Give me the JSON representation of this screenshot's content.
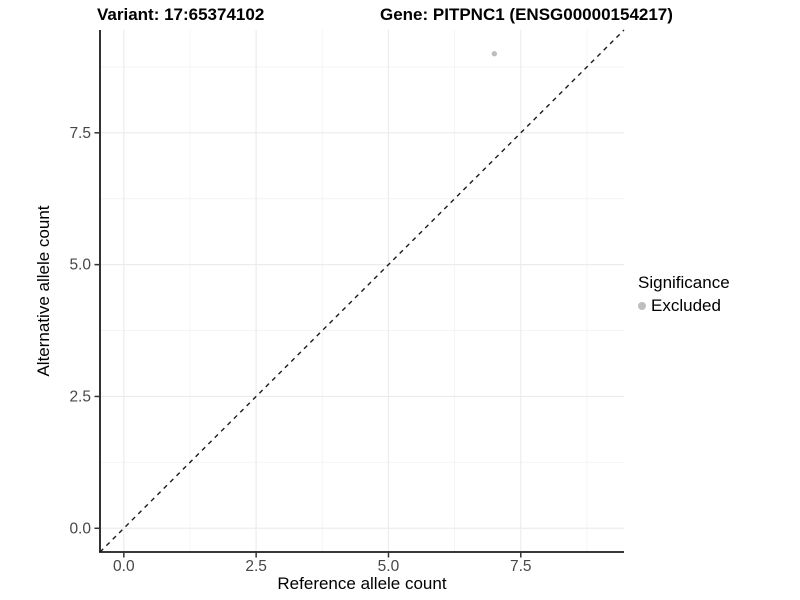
{
  "figure": {
    "title_variant": "Variant: 17:65374102",
    "title_gene": "Gene: PITPNC1 (ENSG00000154217)"
  },
  "chart_data": {
    "type": "scatter",
    "title": "Variant: 17:65374102   Gene: PITPNC1 (ENSG00000154217)",
    "xlabel": "Reference allele count",
    "ylabel": "Alternative allele count",
    "xlim": [
      -0.45,
      9.45
    ],
    "ylim": [
      -0.45,
      9.45
    ],
    "x_ticks": [
      {
        "value": 0.0,
        "label": "0.0"
      },
      {
        "value": 2.5,
        "label": "2.5"
      },
      {
        "value": 5.0,
        "label": "5.0"
      },
      {
        "value": 7.5,
        "label": "7.5"
      }
    ],
    "y_ticks": [
      {
        "value": 0.0,
        "label": "0.0"
      },
      {
        "value": 2.5,
        "label": "2.5"
      },
      {
        "value": 5.0,
        "label": "5.0"
      },
      {
        "value": 7.5,
        "label": "7.5"
      }
    ],
    "x_minor_ticks": [
      1.25,
      3.75,
      6.25,
      8.75
    ],
    "y_minor_ticks": [
      1.25,
      3.75,
      6.25,
      8.75
    ],
    "grid": "major and minor gridlines on",
    "legend_position": "right",
    "series": [
      {
        "name": "Excluded",
        "color": "#bebebe",
        "marker": "circle",
        "points": [
          {
            "x": 7,
            "y": 9
          }
        ]
      }
    ],
    "reference_line": {
      "kind": "identity y=x",
      "from": [
        -0.45,
        -0.45
      ],
      "to": [
        9.45,
        9.45
      ],
      "style": "dashed",
      "color": "#1a1a1a"
    }
  },
  "legend": {
    "title": "Significance",
    "items": [
      {
        "label": "Excluded",
        "color": "#bebebe"
      }
    ]
  },
  "colors": {
    "background": "#ffffff",
    "axis_line": "#1c1c1c",
    "tick_mark": "#333333",
    "tick_label": "#474747",
    "grid_major": "#ececec",
    "grid_minor": "#f4f4f4",
    "point": "#bebebe",
    "title_text": "#000000"
  }
}
